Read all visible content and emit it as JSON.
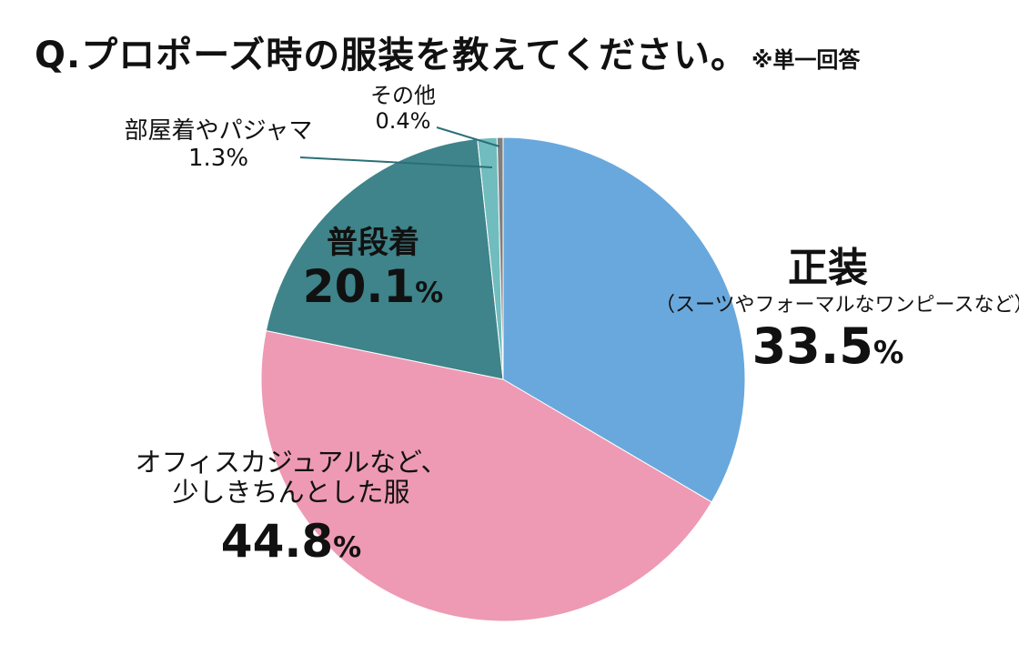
{
  "title": {
    "main": "Q.プロポーズ時の服装を教えてください。",
    "note": "※単一回答"
  },
  "chart_data": {
    "type": "pie",
    "title": "Q.プロポーズ時の服装を教えてください。",
    "note": "※単一回答",
    "start_angle_deg": 0,
    "direction": "clockwise",
    "slices": [
      {
        "label": "正装",
        "sublabel": "（スーツやフォーマルなワンピースなど）",
        "value": 33.5,
        "display": "33.5",
        "unit": "%",
        "color": "#69a8dc"
      },
      {
        "label": "オフィスカジュアルなど、少しきちんとした服",
        "line1": "オフィスカジュアルなど、",
        "line2": "少しきちんとした服",
        "value": 44.8,
        "display": "44.8",
        "unit": "%",
        "color": "#ee9ab4"
      },
      {
        "label": "普段着",
        "value": 20.1,
        "display": "20.1",
        "unit": "%",
        "color": "#3e848a"
      },
      {
        "label": "部屋着やパジャマ",
        "value": 1.3,
        "display": "1.3%",
        "color": "#71bcbe"
      },
      {
        "label": "その他",
        "value": 0.4,
        "display": "0.4%",
        "color": "#7f7f7f"
      }
    ],
    "legend": "none"
  }
}
